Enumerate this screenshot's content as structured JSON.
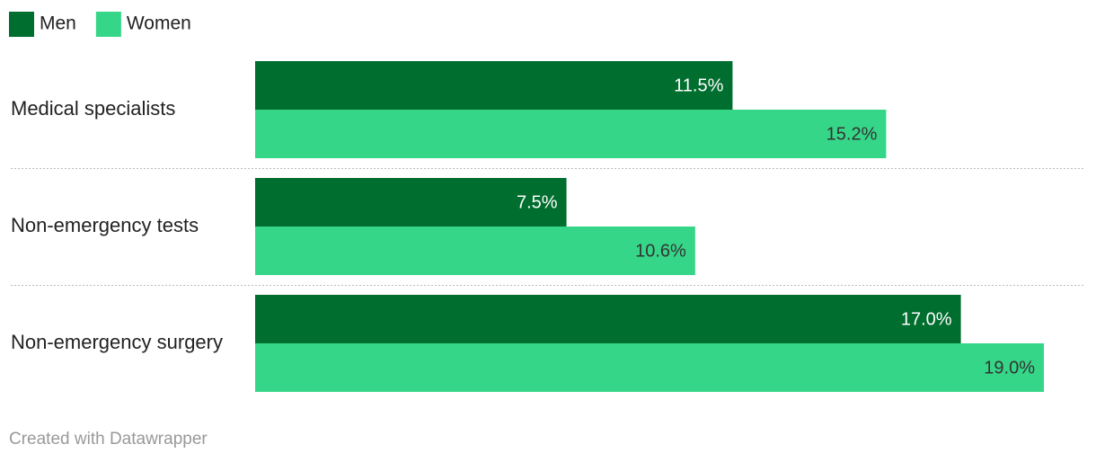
{
  "chart_data": {
    "type": "bar",
    "orientation": "horizontal",
    "categories": [
      "Medical specialists",
      "Non-emergency tests",
      "Non-emergency surgery"
    ],
    "series": [
      {
        "name": "Men",
        "color": "#006e2e",
        "values": [
          11.5,
          7.5,
          17.0
        ],
        "value_labels": [
          "11.5%",
          "7.5%",
          "17.0%"
        ]
      },
      {
        "name": "Women",
        "color": "#36d688",
        "values": [
          15.2,
          10.6,
          19.0
        ],
        "value_labels": [
          "15.2%",
          "10.6%",
          "19.0%"
        ]
      }
    ],
    "legend": "top-left",
    "footer": "Created with Datawrapper"
  }
}
